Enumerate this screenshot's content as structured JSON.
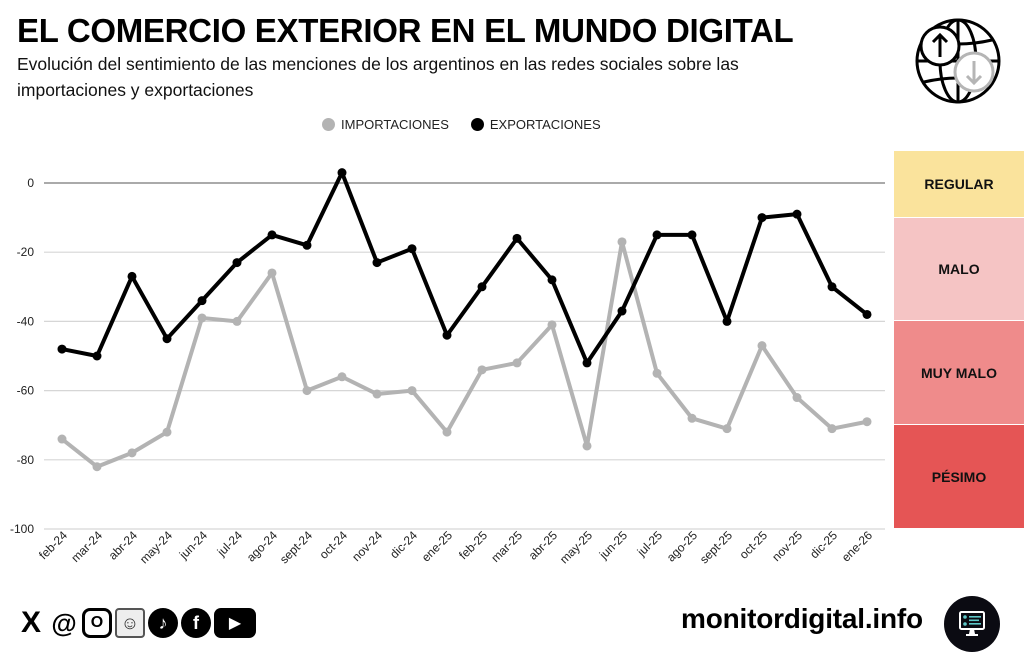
{
  "header": {
    "title": "EL COMERCIO EXTERIOR EN EL MUNDO DIGITAL",
    "subtitle": "Evolución del sentimiento de las menciones de los argentinos en las redes sociales sobre las importaciones y exportaciones",
    "icon": "globe-import-export-icon"
  },
  "chart_data": {
    "type": "line",
    "title": "",
    "xlabel": "",
    "ylabel": "",
    "ylim": [
      -100,
      5
    ],
    "yticks": [
      0,
      -20,
      -40,
      -60,
      -80,
      -100
    ],
    "grid": true,
    "legend_position": "top-center",
    "categories": [
      "feb-24",
      "mar-24",
      "abr-24",
      "may-24",
      "jun-24",
      "jul-24",
      "ago-24",
      "sept-24",
      "oct-24",
      "nov-24",
      "dic-24",
      "ene-25",
      "feb-25",
      "mar-25",
      "abr-25",
      "may-25",
      "jun-25",
      "jul-25",
      "ago-25",
      "sept-25",
      "oct-25",
      "nov-25",
      "dic-25",
      "ene-26"
    ],
    "series": [
      {
        "name": "IMPORTACIONES",
        "color": "#b3b3b3",
        "values": [
          -74,
          -82,
          -78,
          -72,
          -39,
          -40,
          -26,
          -60,
          -56,
          -61,
          -60,
          -72,
          -54,
          -52,
          -41,
          -76,
          -17,
          -55,
          -68,
          -71,
          -47,
          -62,
          -71,
          -69
        ]
      },
      {
        "name": "EXPORTACIONES",
        "color": "#000000",
        "values": [
          -48,
          -50,
          -27,
          -45,
          -34,
          -23,
          -15,
          -18,
          3,
          -23,
          -19,
          -44,
          -30,
          -16,
          -28,
          -52,
          -37,
          -15,
          -15,
          -40,
          -10,
          -9,
          -30,
          -38
        ]
      }
    ],
    "bands": [
      {
        "label": "REGULAR",
        "from": 10,
        "to": -10,
        "color": "#fae39c"
      },
      {
        "label": "MALO",
        "from": -10,
        "to": -40,
        "color": "#f5c4c4"
      },
      {
        "label": "MUY MALO",
        "from": -40,
        "to": -70,
        "color": "#ef8b8b"
      },
      {
        "label": "PÉSIMO",
        "from": -70,
        "to": -100,
        "color": "#e55555"
      }
    ]
  },
  "footer": {
    "social": [
      {
        "name": "x-icon",
        "glyph": "X"
      },
      {
        "name": "threads-icon",
        "glyph": "@"
      },
      {
        "name": "instagram-icon",
        "glyph": "O"
      },
      {
        "name": "reddit-icon",
        "glyph": "☺"
      },
      {
        "name": "tiktok-icon",
        "glyph": "♪"
      },
      {
        "name": "facebook-icon",
        "glyph": "f"
      },
      {
        "name": "youtube-icon",
        "glyph": "▶"
      }
    ],
    "site": "monitordigital.info"
  }
}
